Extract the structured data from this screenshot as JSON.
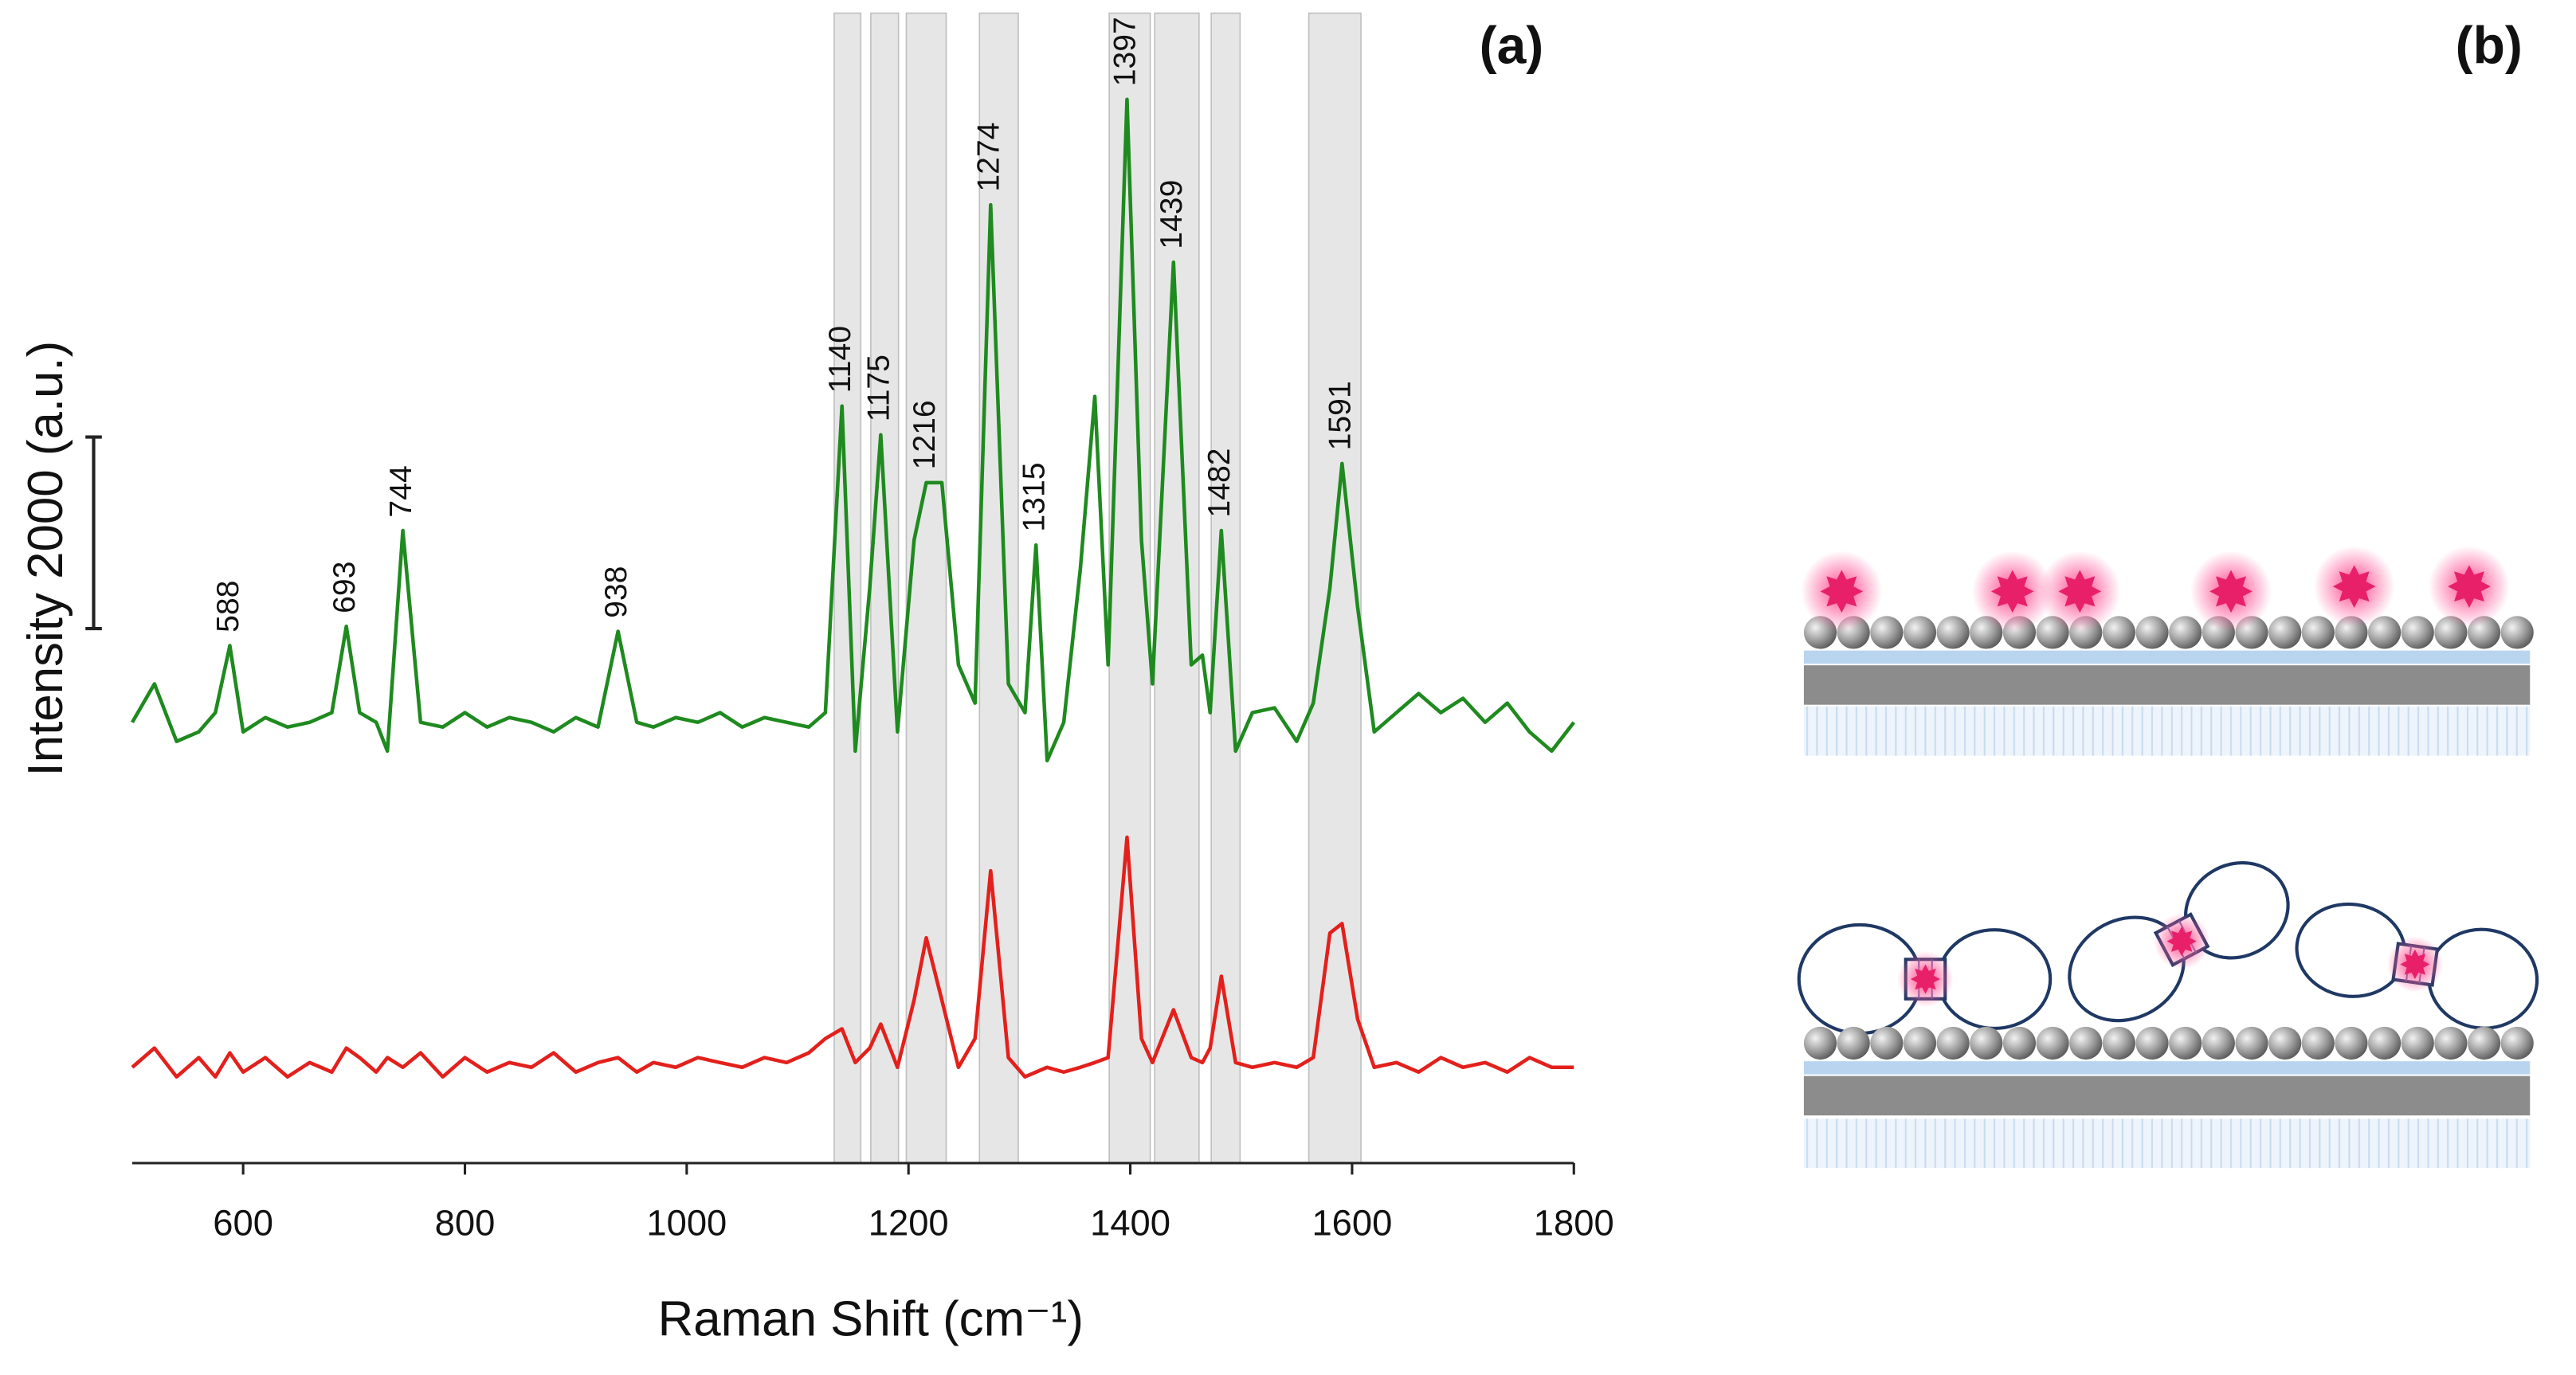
{
  "chart_data": {
    "type": "line",
    "panel_labels": [
      "(a)",
      "(b)"
    ],
    "x_label": "Raman Shift (cm⁻¹)",
    "y_label": "Intensity 2000 (a.u.)",
    "scale_bar": 2000,
    "xlim": [
      500,
      1800
    ],
    "xticks": [
      600,
      800,
      1000,
      1200,
      1400,
      1600,
      1800
    ],
    "ylim": [
      0,
      12000
    ],
    "x": [
      500,
      520,
      540,
      560,
      575,
      588,
      600,
      620,
      640,
      660,
      680,
      693,
      705,
      720,
      730,
      744,
      760,
      780,
      800,
      820,
      840,
      860,
      880,
      900,
      920,
      938,
      955,
      970,
      990,
      1010,
      1030,
      1050,
      1070,
      1090,
      1110,
      1125,
      1140,
      1152,
      1165,
      1175,
      1190,
      1205,
      1216,
      1230,
      1245,
      1260,
      1274,
      1290,
      1305,
      1315,
      1325,
      1340,
      1355,
      1368,
      1380,
      1397,
      1410,
      1420,
      1439,
      1455,
      1465,
      1472,
      1482,
      1495,
      1510,
      1530,
      1550,
      1565,
      1580,
      1591,
      1605,
      1620,
      1640,
      1660,
      1680,
      1700,
      1720,
      1740,
      1760,
      1780,
      1800
    ],
    "series": [
      {
        "color": "#1f8a1f",
        "values": [
          4600,
          5000,
          4400,
          4500,
          4700,
          5400,
          4500,
          4650,
          4550,
          4600,
          4700,
          5600,
          4700,
          4600,
          4300,
          6600,
          4600,
          4550,
          4700,
          4550,
          4650,
          4600,
          4500,
          4650,
          4550,
          5550,
          4600,
          4550,
          4650,
          4600,
          4700,
          4550,
          4650,
          4600,
          4550,
          4700,
          7900,
          4300,
          6000,
          7600,
          4500,
          6500,
          7100,
          7100,
          5200,
          4800,
          10000,
          5000,
          4700,
          6450,
          4200,
          4600,
          6200,
          8000,
          5200,
          11100,
          6500,
          5000,
          9400,
          5200,
          5300,
          4700,
          6600,
          4300,
          4700,
          4750,
          4400,
          4800,
          6000,
          7300,
          5800,
          4500,
          4700,
          4900,
          4700,
          4850,
          4600,
          4800,
          4500,
          4300,
          4600
        ]
      },
      {
        "color": "#e3201c",
        "values": [
          1000,
          1200,
          900,
          1100,
          900,
          1150,
          950,
          1100,
          900,
          1050,
          950,
          1200,
          1100,
          950,
          1100,
          1000,
          1150,
          900,
          1100,
          950,
          1050,
          1000,
          1150,
          950,
          1050,
          1100,
          950,
          1050,
          1000,
          1100,
          1050,
          1000,
          1100,
          1050,
          1150,
          1300,
          1400,
          1050,
          1200,
          1450,
          1000,
          1700,
          2350,
          1700,
          1000,
          1300,
          3050,
          1100,
          900,
          950,
          1000,
          950,
          1000,
          1050,
          1100,
          3400,
          1300,
          1050,
          1600,
          1100,
          1050,
          1200,
          1950,
          1050,
          1000,
          1050,
          1000,
          1100,
          2400,
          2500,
          1500,
          1000,
          1050,
          950,
          1100,
          1000,
          1050,
          950,
          1100,
          1000,
          1000
        ]
      }
    ],
    "peak_labels": [
      588,
      693,
      744,
      938,
      1140,
      1175,
      1216,
      1274,
      1315,
      1397,
      1439,
      1482,
      1591
    ],
    "bands": [
      [
        1133,
        1157
      ],
      [
        1166,
        1191
      ],
      [
        1198,
        1234
      ],
      [
        1264,
        1299
      ],
      [
        1381,
        1418
      ],
      [
        1422,
        1462
      ],
      [
        1473,
        1499
      ],
      [
        1561,
        1608
      ]
    ],
    "band_color": "#e6e6e6"
  }
}
